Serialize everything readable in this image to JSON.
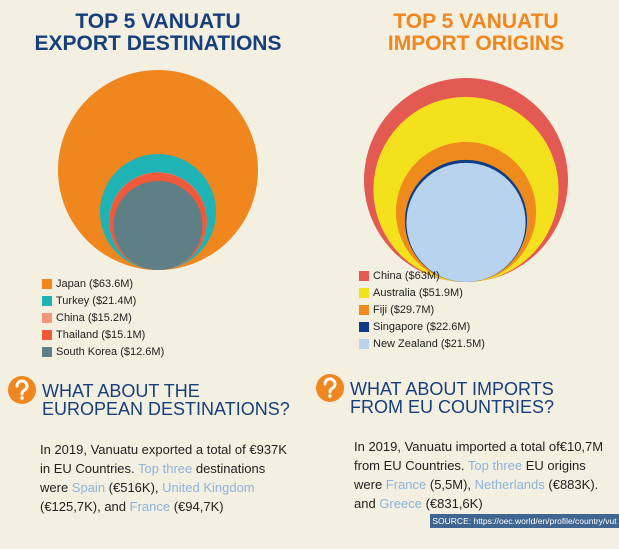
{
  "chart_data": [
    {
      "type": "nested-circles",
      "title": [
        "TOP 5 VANUATU",
        "EXPORT DESTINATIONS"
      ],
      "title_color": "#173f7c",
      "categories": [
        "Japan",
        "Turkey",
        "China",
        "Thailand",
        "South Korea"
      ],
      "values": [
        63.6,
        21.4,
        15.2,
        15.1,
        12.6
      ],
      "value_labels": [
        "($63.6M)",
        "($21.4M)",
        "($15.2M)",
        "($15.1M)",
        "($12.6M)"
      ],
      "colors": [
        "#f0861e",
        "#1fb3b6",
        "#f4967c",
        "#f05a3a",
        "#5f7f87"
      ]
    },
    {
      "type": "nested-circles",
      "title": [
        "TOP 5 VANUATU",
        "IMPORT ORIGINS"
      ],
      "title_color": "#f0861e",
      "categories": [
        "China",
        "Australia",
        "Fiji",
        "Singapore",
        "New Zealand"
      ],
      "values": [
        63,
        51.9,
        29.7,
        22.6,
        21.5
      ],
      "value_labels": [
        "($63M)",
        "($51.9M)",
        "($29.7M)",
        "($22.6M)",
        "($21.5M)"
      ],
      "colors": [
        "#e35a52",
        "#f4e11e",
        "#ef8a1c",
        "#0e3d85",
        "#b7d3ee"
      ]
    }
  ],
  "sections": [
    {
      "heading": [
        "WHAT ABOUT THE",
        "EUROPEAN DESTINATIONS?"
      ],
      "paragraph": [
        {
          "text": "In 2019, Vanuatu exported a total of €937K in EU Countries. ",
          "highlight": false
        },
        {
          "text": "Top three",
          "highlight": true
        },
        {
          "text": " destinations were ",
          "highlight": false
        },
        {
          "text": "Spain",
          "highlight": true
        },
        {
          "text": " (€516K), ",
          "highlight": false
        },
        {
          "text": "United Kingdom",
          "highlight": true
        },
        {
          "text": " (€125,7K), and ",
          "highlight": false
        },
        {
          "text": "France",
          "highlight": true
        },
        {
          "text": " (€94,7K)",
          "highlight": false
        }
      ]
    },
    {
      "heading": [
        "WHAT ABOUT IMPORTS",
        "FROM EU COUNTRIES?"
      ],
      "paragraph": [
        {
          "text": "In 2019, Vanuatu imported a total of€10,7M from EU Countries. ",
          "highlight": false
        },
        {
          "text": "Top three",
          "highlight": true
        },
        {
          "text": " EU origins were ",
          "highlight": false
        },
        {
          "text": "France",
          "highlight": true
        },
        {
          "text": " (5,5M), ",
          "highlight": false
        },
        {
          "text": "Netherlands",
          "highlight": true
        },
        {
          "text": " (€883K). and ",
          "highlight": false
        },
        {
          "text": "Greece",
          "highlight": true
        },
        {
          "text": " (€831,6K)",
          "highlight": false
        }
      ]
    }
  ],
  "source": "SOURCE: https://oec.world/en/profile/country/vut"
}
